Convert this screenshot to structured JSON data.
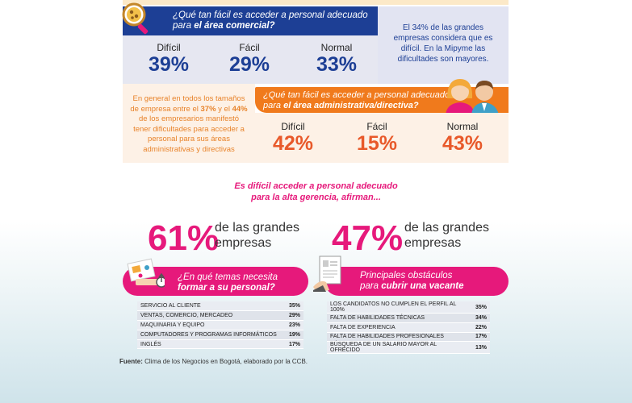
{
  "q1": {
    "question_line1": "¿Qué tan fácil es acceder a personal adecuado",
    "question_line2_prefix": "para ",
    "question_line2_bold": "el área comercial?",
    "stats": [
      {
        "label": "Difícil",
        "value": "39%"
      },
      {
        "label": "Fácil",
        "value": "29%"
      },
      {
        "label": "Normal",
        "value": "33%"
      }
    ]
  },
  "side_note": "El 34% de las grandes empresas considera que es difícil. En la Mipyme las dificultades son mayores.",
  "left_note": {
    "part1": "En general en todos los tamaños de empresa entre el ",
    "bold1": "37%",
    "part2": " y el ",
    "bold2": "44%",
    "part3": " de los empresarios manifestó tener dificultades para acceder a personal para sus áreas administrativas y directivas"
  },
  "q2": {
    "question_line1": "¿Qué tan fácil es acceder a personal adecuado",
    "question_line2_prefix": "para ",
    "question_line2_bold": "el área administrativa/directiva?",
    "stats": [
      {
        "label": "Difícil",
        "value": "42%"
      },
      {
        "label": "Fácil",
        "value": "15%"
      },
      {
        "label": "Normal",
        "value": "43%"
      }
    ]
  },
  "headline": {
    "line1": "Es difícil acceder a personal adecuado",
    "line2": "para la alta gerencia, afirman..."
  },
  "big_stats": [
    {
      "value": "61%",
      "text_line1": "de las grandes",
      "text_line2": "empresas"
    },
    {
      "value": "47%",
      "text_line1": "de las grandes",
      "text_line2": "empresas"
    }
  ],
  "training": {
    "title_line1": "¿En qué temas necesita",
    "title_line2": "formar a su personal?",
    "rows": [
      {
        "label": "SERVICIO AL CLIENTE",
        "value": "35%"
      },
      {
        "label": "VENTAS, COMERCIO, MERCADEO",
        "value": "29%"
      },
      {
        "label": "MAQUINARIA Y EQUIPO",
        "value": "23%"
      },
      {
        "label": "COMPUTADORES Y PROGRAMAS INFORMÁTICOS",
        "value": "19%"
      },
      {
        "label": "INGLÉS",
        "value": "17%"
      }
    ]
  },
  "obstacles": {
    "title_line1": "Principales obstáculos",
    "title_line2_prefix": "para ",
    "title_line2_bold": "cubrir una vacante",
    "rows": [
      {
        "label": "LOS CANDIDATOS NO CUMPLEN EL PERFIL AL 100%",
        "value": "35%"
      },
      {
        "label": "FALTA DE HABILIDADES TÉCNICAS",
        "value": "34%"
      },
      {
        "label": "FALTA DE EXPERIENCIA",
        "value": "22%"
      },
      {
        "label": "FALTA DE HABILIDADES PROFESIONALES",
        "value": "17%"
      },
      {
        "label": "BÚSQUEDA DE UN SALARIO MAYOR AL OFRECIDO",
        "value": "13%"
      }
    ]
  },
  "source": {
    "label": "Fuente:",
    "text": " Clima de los Negocios en Bogotá, elaborado por la CCB."
  },
  "colors": {
    "blue": "#1d3f95",
    "orange": "#f07a1c",
    "pink": "#e6197b"
  }
}
